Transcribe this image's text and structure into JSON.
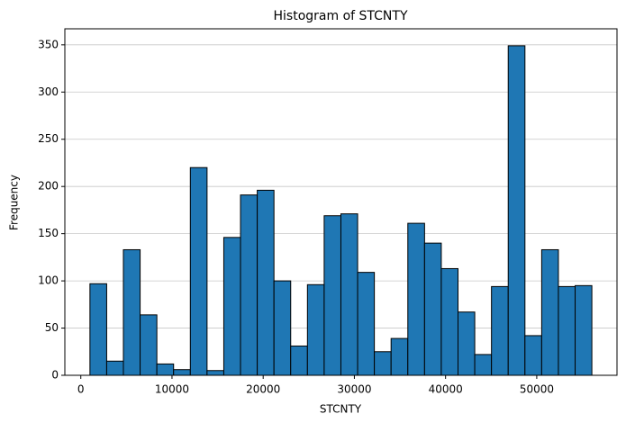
{
  "chart_data": {
    "type": "histogram",
    "title": "Histogram of STCNTY",
    "x_label": "STCNTY",
    "y_label": "Frequency",
    "bins": [
      1001,
      2836,
      4670,
      6505,
      8340,
      10175,
      12010,
      13844,
      15679,
      17514,
      19349,
      21183,
      23018,
      24853,
      26688,
      28523,
      30357,
      32192,
      34027,
      35862,
      37697,
      39531,
      41366,
      43201,
      45036,
      46871,
      48705,
      50540,
      52375,
      54210,
      56045
    ],
    "values": [
      97,
      15,
      133,
      64,
      12,
      6,
      220,
      5,
      146,
      191,
      196,
      100,
      31,
      96,
      169,
      171,
      109,
      25,
      39,
      161,
      140,
      113,
      67,
      22,
      94,
      349,
      42,
      133,
      94,
      95
    ],
    "color": "#1f77b4",
    "edgecolor": "#000000",
    "xlim": [
      -1750,
      58800
    ],
    "xticks": [
      0,
      10000,
      20000,
      30000,
      40000,
      50000
    ],
    "ylim": [
      0,
      367
    ],
    "yticks": [
      0,
      50,
      100,
      150,
      200,
      250,
      300,
      350
    ],
    "grid": "y"
  }
}
